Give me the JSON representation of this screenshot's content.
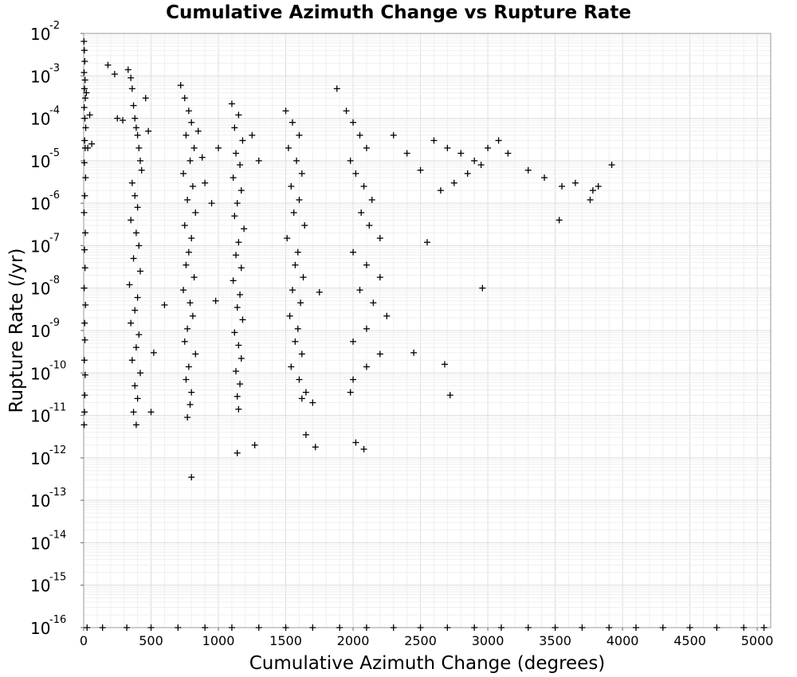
{
  "chart_data": {
    "type": "scatter",
    "title": "Cumulative Azimuth Change vs Rupture Rate",
    "xlabel": "Cumulative Azimuth Change (degrees)",
    "ylabel": "Rupture Rate (/yr)",
    "xlim": [
      0,
      5100
    ],
    "ylim": [
      1e-16,
      0.01
    ],
    "yscale": "log",
    "grid": true,
    "legend": "none",
    "marker": "plus",
    "marker_color": "#000000",
    "x_ticks": [
      0,
      500,
      1000,
      1500,
      2000,
      2500,
      3000,
      3500,
      4000,
      4500,
      5000
    ],
    "x_tick_labels": [
      "0",
      "500",
      "1000",
      "1500",
      "2000",
      "2500",
      "3000",
      "3500",
      "4000",
      "4500",
      "5000"
    ],
    "y_ticks": [
      {
        "base": "10",
        "exp": "-16"
      },
      {
        "base": "10",
        "exp": "-15"
      },
      {
        "base": "10",
        "exp": "-14"
      },
      {
        "base": "10",
        "exp": "-13"
      },
      {
        "base": "10",
        "exp": "-12"
      },
      {
        "base": "10",
        "exp": "-11"
      },
      {
        "base": "10",
        "exp": "-10"
      },
      {
        "base": "10",
        "exp": "-9"
      },
      {
        "base": "10",
        "exp": "-8"
      },
      {
        "base": "10",
        "exp": "-7"
      },
      {
        "base": "10",
        "exp": "-6"
      },
      {
        "base": "10",
        "exp": "-5"
      },
      {
        "base": "10",
        "exp": "-4"
      },
      {
        "base": "10",
        "exp": "-3"
      },
      {
        "base": "10",
        "exp": "-2"
      }
    ],
    "points": [
      [
        2,
        0.0065
      ],
      [
        5,
        0.004
      ],
      [
        8,
        0.0022
      ],
      [
        3,
        0.0012
      ],
      [
        10,
        0.0008
      ],
      [
        6,
        0.0005
      ],
      [
        12,
        0.0003
      ],
      [
        4,
        0.00018
      ],
      [
        9,
        0.0001
      ],
      [
        15,
        6e-05
      ],
      [
        7,
        3e-05
      ],
      [
        11,
        2e-05
      ],
      [
        5,
        9e-06
      ],
      [
        14,
        4e-06
      ],
      [
        8,
        1.5e-06
      ],
      [
        3,
        6e-07
      ],
      [
        12,
        2e-07
      ],
      [
        6,
        8e-08
      ],
      [
        10,
        3e-08
      ],
      [
        4,
        1e-08
      ],
      [
        13,
        4e-09
      ],
      [
        7,
        1.5e-09
      ],
      [
        9,
        6e-10
      ],
      [
        5,
        2e-10
      ],
      [
        11,
        9e-11
      ],
      [
        8,
        3e-11
      ],
      [
        6,
        1.2e-11
      ],
      [
        3,
        6e-12
      ],
      [
        20,
        0.0004
      ],
      [
        30,
        2e-05
      ],
      [
        45,
        0.00012
      ],
      [
        60,
        2.5e-05
      ],
      [
        180,
        0.0018
      ],
      [
        230,
        0.0011
      ],
      [
        250,
        0.0001
      ],
      [
        290,
        9e-05
      ],
      [
        330,
        0.0014
      ],
      [
        350,
        0.0009
      ],
      [
        360,
        0.0005
      ],
      [
        370,
        0.0002
      ],
      [
        380,
        0.0001
      ],
      [
        390,
        6e-05
      ],
      [
        400,
        4e-05
      ],
      [
        410,
        2e-05
      ],
      [
        420,
        1e-05
      ],
      [
        430,
        6e-06
      ],
      [
        360,
        3e-06
      ],
      [
        380,
        1.5e-06
      ],
      [
        400,
        8e-07
      ],
      [
        350,
        4e-07
      ],
      [
        390,
        2e-07
      ],
      [
        410,
        1e-07
      ],
      [
        370,
        5e-08
      ],
      [
        420,
        2.5e-08
      ],
      [
        340,
        1.2e-08
      ],
      [
        400,
        6e-09
      ],
      [
        380,
        3e-09
      ],
      [
        350,
        1.5e-09
      ],
      [
        410,
        8e-10
      ],
      [
        390,
        4e-10
      ],
      [
        360,
        2e-10
      ],
      [
        420,
        1e-10
      ],
      [
        380,
        5e-11
      ],
      [
        400,
        2.5e-11
      ],
      [
        370,
        1.2e-11
      ],
      [
        390,
        6e-12
      ],
      [
        460,
        0.0003
      ],
      [
        480,
        5e-05
      ],
      [
        500,
        1.2e-11
      ],
      [
        520,
        3e-10
      ],
      [
        600,
        4e-09
      ],
      [
        720,
        0.0006
      ],
      [
        750,
        0.0003
      ],
      [
        780,
        0.00015
      ],
      [
        800,
        8e-05
      ],
      [
        760,
        4e-05
      ],
      [
        820,
        2e-05
      ],
      [
        790,
        1e-05
      ],
      [
        740,
        5e-06
      ],
      [
        810,
        2.5e-06
      ],
      [
        770,
        1.2e-06
      ],
      [
        830,
        6e-07
      ],
      [
        750,
        3e-07
      ],
      [
        800,
        1.5e-07
      ],
      [
        780,
        7e-08
      ],
      [
        760,
        3.5e-08
      ],
      [
        820,
        1.8e-08
      ],
      [
        740,
        9e-09
      ],
      [
        790,
        4.5e-09
      ],
      [
        810,
        2.2e-09
      ],
      [
        770,
        1.1e-09
      ],
      [
        750,
        5.5e-10
      ],
      [
        830,
        2.8e-10
      ],
      [
        780,
        1.4e-10
      ],
      [
        760,
        7e-11
      ],
      [
        800,
        3.5e-11
      ],
      [
        790,
        1.8e-11
      ],
      [
        770,
        9e-12
      ],
      [
        800,
        3.5e-13
      ],
      [
        850,
        5e-05
      ],
      [
        880,
        1.2e-05
      ],
      [
        900,
        3e-06
      ],
      [
        950,
        1e-06
      ],
      [
        1000,
        2e-05
      ],
      [
        980,
        5e-09
      ],
      [
        1100,
        0.00022
      ],
      [
        1150,
        0.00012
      ],
      [
        1120,
        6e-05
      ],
      [
        1180,
        3e-05
      ],
      [
        1130,
        1.5e-05
      ],
      [
        1160,
        8e-06
      ],
      [
        1110,
        4e-06
      ],
      [
        1170,
        2e-06
      ],
      [
        1140,
        1e-06
      ],
      [
        1120,
        5e-07
      ],
      [
        1190,
        2.5e-07
      ],
      [
        1150,
        1.2e-07
      ],
      [
        1130,
        6e-08
      ],
      [
        1170,
        3e-08
      ],
      [
        1110,
        1.5e-08
      ],
      [
        1160,
        7e-09
      ],
      [
        1140,
        3.5e-09
      ],
      [
        1180,
        1.8e-09
      ],
      [
        1120,
        9e-10
      ],
      [
        1150,
        4.5e-10
      ],
      [
        1170,
        2.2e-10
      ],
      [
        1130,
        1.1e-10
      ],
      [
        1160,
        5.5e-11
      ],
      [
        1140,
        2.8e-11
      ],
      [
        1150,
        1.4e-11
      ],
      [
        1270,
        2e-12
      ],
      [
        1140,
        1.3e-12
      ],
      [
        1250,
        4e-05
      ],
      [
        1300,
        1e-05
      ],
      [
        1500,
        0.00015
      ],
      [
        1550,
        8e-05
      ],
      [
        1600,
        4e-05
      ],
      [
        1520,
        2e-05
      ],
      [
        1580,
        1e-05
      ],
      [
        1620,
        5e-06
      ],
      [
        1540,
        2.5e-06
      ],
      [
        1600,
        1.2e-06
      ],
      [
        1560,
        6e-07
      ],
      [
        1640,
        3e-07
      ],
      [
        1510,
        1.5e-07
      ],
      [
        1590,
        7e-08
      ],
      [
        1570,
        3.5e-08
      ],
      [
        1630,
        1.8e-08
      ],
      [
        1550,
        9e-09
      ],
      [
        1610,
        4.5e-09
      ],
      [
        1530,
        2.2e-09
      ],
      [
        1590,
        1.1e-09
      ],
      [
        1570,
        5.5e-10
      ],
      [
        1620,
        2.8e-10
      ],
      [
        1540,
        1.4e-10
      ],
      [
        1600,
        7e-11
      ],
      [
        1650,
        3.5e-11
      ],
      [
        1620,
        2.5e-11
      ],
      [
        1650,
        3.5e-12
      ],
      [
        1720,
        1.8e-12
      ],
      [
        1700,
        2e-11
      ],
      [
        1750,
        8e-09
      ],
      [
        1880,
        0.0005
      ],
      [
        1950,
        0.00015
      ],
      [
        2000,
        8e-05
      ],
      [
        2050,
        4e-05
      ],
      [
        2100,
        2e-05
      ],
      [
        1980,
        1e-05
      ],
      [
        2020,
        5e-06
      ],
      [
        2080,
        2.5e-06
      ],
      [
        2140,
        1.2e-06
      ],
      [
        2060,
        6e-07
      ],
      [
        2120,
        3e-07
      ],
      [
        2200,
        1.5e-07
      ],
      [
        2000,
        7e-08
      ],
      [
        2100,
        3.5e-08
      ],
      [
        2200,
        1.8e-08
      ],
      [
        2050,
        9e-09
      ],
      [
        2150,
        4.5e-09
      ],
      [
        2250,
        2.2e-09
      ],
      [
        2100,
        1.1e-09
      ],
      [
        2000,
        5.5e-10
      ],
      [
        2200,
        2.8e-10
      ],
      [
        2100,
        1.4e-10
      ],
      [
        2000,
        7e-11
      ],
      [
        1980,
        3.5e-11
      ],
      [
        2020,
        2.3e-12
      ],
      [
        2080,
        1.6e-12
      ],
      [
        2300,
        4e-05
      ],
      [
        2400,
        1.5e-05
      ],
      [
        2500,
        6e-06
      ],
      [
        2550,
        1.2e-07
      ],
      [
        2450,
        3e-10
      ],
      [
        2720,
        3e-11
      ],
      [
        2600,
        3e-05
      ],
      [
        2700,
        2e-05
      ],
      [
        2800,
        1.5e-05
      ],
      [
        2900,
        1e-05
      ],
      [
        3000,
        2e-05
      ],
      [
        3080,
        3e-05
      ],
      [
        2950,
        8e-06
      ],
      [
        2850,
        5e-06
      ],
      [
        2750,
        3e-06
      ],
      [
        2650,
        2e-06
      ],
      [
        2960,
        1e-08
      ],
      [
        2680,
        1.6e-10
      ],
      [
        3150,
        1.5e-05
      ],
      [
        3300,
        6e-06
      ],
      [
        3420,
        4e-06
      ],
      [
        3550,
        2.5e-06
      ],
      [
        3650,
        3e-06
      ],
      [
        3780,
        2e-06
      ],
      [
        3820,
        2.5e-06
      ],
      [
        3760,
        1.2e-06
      ],
      [
        3530,
        4e-07
      ],
      [
        3920,
        8e-06
      ],
      [
        25,
        1e-16
      ],
      [
        140,
        1e-16
      ],
      [
        320,
        1e-16
      ],
      [
        500,
        1e-16
      ],
      [
        700,
        1e-16
      ],
      [
        900,
        1e-16
      ],
      [
        1100,
        1e-16
      ],
      [
        1300,
        1e-16
      ],
      [
        1500,
        1e-16
      ],
      [
        1700,
        1e-16
      ],
      [
        1900,
        1e-16
      ],
      [
        2100,
        1e-16
      ],
      [
        2300,
        1e-16
      ],
      [
        2500,
        1e-16
      ],
      [
        2700,
        1e-16
      ],
      [
        2900,
        1e-16
      ],
      [
        3100,
        1e-16
      ],
      [
        3300,
        1e-16
      ],
      [
        3500,
        1e-16
      ],
      [
        3700,
        1e-16
      ],
      [
        3900,
        1e-16
      ],
      [
        4100,
        1e-16
      ],
      [
        4300,
        1e-16
      ],
      [
        4500,
        1e-16
      ],
      [
        4700,
        1e-16
      ],
      [
        4900,
        1e-16
      ],
      [
        5050,
        1e-16
      ]
    ]
  }
}
